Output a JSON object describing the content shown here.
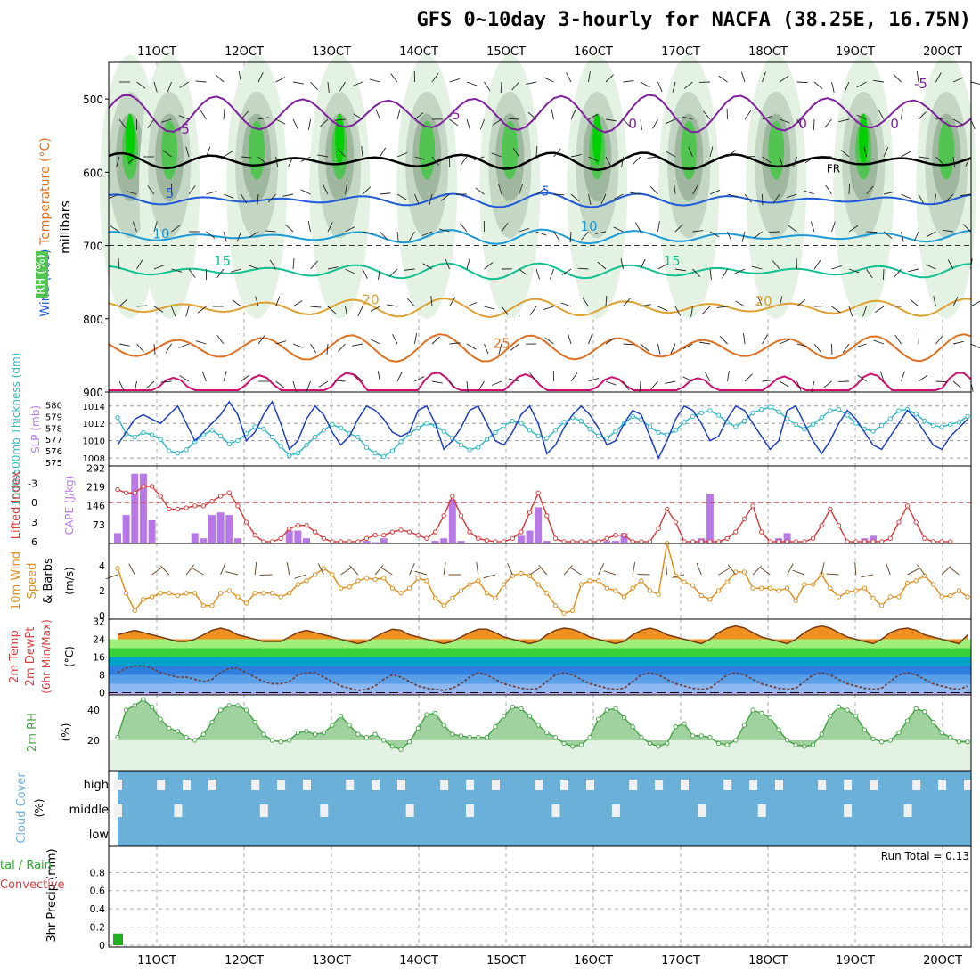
{
  "title": "GFS 0~10day 3-hourly for NACFA (38.25E, 16.75N)",
  "x_date_labels": [
    "11OCT",
    "12OCT",
    "13OCT",
    "14OCT",
    "15OCT",
    "16OCT",
    "17OCT",
    "18OCT",
    "19OCT",
    "20OCT"
  ],
  "run_total_label": "Run Total = 0.13",
  "colors": {
    "rh_fill_light": "#e4f2e4",
    "rh_fill_mid": "#c4d6c4",
    "rh_fill_dark": "#9fb79f",
    "rh_green": "#52c452",
    "rh_bright": "#00d000",
    "temp_m5": "#8020a0",
    "temp_5": "#1f5ad8",
    "temp_10": "#1a9ad8",
    "temp_15": "#10c090",
    "temp_20": "#e0a030",
    "temp_25": "#e07020",
    "temp_30": "#d01070",
    "freezing": "#000000",
    "slp": "#1e3fc8",
    "thickness": "#30b8c8",
    "cape": "#b878e8",
    "lifted": "#d84040",
    "wind10m": "#e09020",
    "rh2m": "#4aa64a",
    "cloud": "#6ab0d8",
    "cloud_gap": "#f0f0f0",
    "precip": "#20b020"
  },
  "chart_data": [
    {
      "type": "line",
      "panel": "upper-air",
      "y_axis_title": [
        "RH (%)",
        "Temperature (°C)",
        "Wind (m/s)"
      ],
      "ylabel": "millibars",
      "y_ticks": [
        500,
        600,
        700,
        800,
        900
      ],
      "ylim": [
        450,
        900
      ],
      "isotherm_labels": [
        {
          "t": 0.3,
          "p": 547,
          "text": "-5"
        },
        {
          "t": 3.4,
          "p": 528,
          "text": "-5"
        },
        {
          "t": 8.75,
          "p": 485,
          "text": "-5"
        },
        {
          "t": 8.45,
          "p": 540,
          "text": "0"
        },
        {
          "t": 7.4,
          "p": 540,
          "text": "0"
        },
        {
          "t": 5.45,
          "p": 540,
          "text": "0"
        },
        {
          "t": 0.15,
          "p": 635,
          "text": "5"
        },
        {
          "t": 4.45,
          "p": 632,
          "text": "5"
        },
        {
          "t": 0.05,
          "p": 690,
          "text": "10"
        },
        {
          "t": 4.95,
          "p": 680,
          "text": "10"
        },
        {
          "t": 0.75,
          "p": 727,
          "text": "15"
        },
        {
          "t": 5.9,
          "p": 727,
          "text": "15"
        },
        {
          "t": 2.45,
          "p": 780,
          "text": "20"
        },
        {
          "t": 6.95,
          "p": 782,
          "text": "20"
        },
        {
          "t": 3.95,
          "p": 840,
          "text": "25"
        },
        {
          "t": 7.75,
          "p": 600,
          "text": "FR"
        }
      ]
    },
    {
      "type": "line",
      "panel": "slp-thickness",
      "left_axis_title": "1000-500mb Thickness (dm)",
      "right_axis_title": "SLP (mb)",
      "thickness_ticks": [
        575,
        576,
        577,
        578,
        579,
        580
      ],
      "slp_ticks": [
        1008,
        1010,
        1012,
        1014
      ],
      "series": [
        {
          "name": "SLP (mb)",
          "axis": "right",
          "values": [
            1009.5,
            1011,
            1012.5,
            1013,
            1012.5,
            1012,
            1013,
            1014,
            1012,
            1010,
            1011,
            1012,
            1013,
            1014.5,
            1013,
            1010,
            1011,
            1013,
            1014.5,
            1012,
            1009,
            1010,
            1012.5,
            1014,
            1013,
            1011,
            1009.5,
            1010.5,
            1012.5,
            1014,
            1013.5,
            1012.5,
            1011,
            1010.5,
            1011,
            1013.5,
            1014,
            1012,
            1009,
            1010,
            1011.5,
            1013.5,
            1014,
            1012,
            1010,
            1009.5,
            1011,
            1013,
            1014,
            1012,
            1008.5,
            1009.5,
            1011.5,
            1013,
            1014,
            1013,
            1011.5,
            1009.5,
            1010,
            1012,
            1013.5,
            1013,
            1010.5,
            1008,
            1010,
            1012.5,
            1014,
            1013.5,
            1012,
            1010,
            1010.5,
            1012.5,
            1014,
            1013.5,
            1012,
            1010.5,
            1009,
            1010,
            1013.5,
            1014,
            1012,
            1010,
            1008.5,
            1010,
            1012,
            1013.5,
            1012.5,
            1011,
            1009.5,
            1009,
            1010.5,
            1012,
            1013.5,
            1012.5,
            1011,
            1009.5,
            1009,
            1010.5,
            1011.5,
            1012.5
          ]
        },
        {
          "name": "1000-500mb Thickness (dm)",
          "axis": "left",
          "values": [
            578.9,
            577.5,
            577.2,
            577.6,
            577.4,
            577,
            576,
            575.8,
            576.1,
            576.8,
            577.4,
            577.8,
            577.3,
            576.6,
            576.9,
            577.5,
            578.1,
            577.9,
            577.2,
            576.4,
            575.6,
            575.8,
            576.5,
            577.2,
            577.8,
            578.3,
            578,
            577.5,
            577.2,
            576.3,
            575.8,
            575.5,
            576,
            576.8,
            577.5,
            578,
            578.4,
            578.2,
            577.7,
            577.1,
            576.5,
            576.1,
            576.3,
            577,
            577.6,
            578.2,
            578.6,
            578.4,
            577.8,
            577.3,
            577.1,
            577.8,
            578.5,
            578.9,
            578.6,
            577.9,
            577.3,
            577.1,
            577.7,
            578.4,
            579,
            578.7,
            578.1,
            577.6,
            577.4,
            577.8,
            578.5,
            579,
            579.3,
            579.5,
            579.1,
            578.5,
            578.1,
            578.6,
            579.3,
            579.6,
            579.8,
            579.4,
            578.8,
            578.3,
            577.9,
            578.3,
            578.9,
            579.5,
            579.6,
            579.1,
            578.4,
            577.9,
            577.7,
            578.2,
            578.8,
            579.5,
            579.6,
            579.2,
            578.6,
            578.2,
            578.1,
            578.3,
            578.5,
            579
          ]
        }
      ]
    },
    {
      "type": "bar",
      "panel": "cape-lifted-index",
      "left_axis_title": "Lifted Index",
      "right_axis_title": "CAPE (J/kg)",
      "lifted_ticks": [
        -3,
        0,
        3,
        6
      ],
      "cape_ticks": [
        73,
        146,
        219,
        292
      ],
      "series": [
        {
          "name": "CAPE (J/kg)",
          "axis": "right",
          "values": [
            40,
            110,
            270,
            270,
            90,
            0,
            0,
            0,
            0,
            40,
            20,
            110,
            120,
            110,
            20,
            0,
            0,
            0,
            0,
            0,
            50,
            50,
            20,
            0,
            0,
            0,
            0,
            0,
            0,
            10,
            5,
            20,
            0,
            0,
            0,
            0,
            0,
            10,
            20,
            170,
            10,
            0,
            0,
            0,
            0,
            0,
            0,
            30,
            50,
            140,
            10,
            0,
            0,
            0,
            0,
            0,
            0,
            10,
            10,
            40,
            0,
            0,
            0,
            0,
            0,
            0,
            0,
            10,
            20,
            190,
            10,
            0,
            0,
            0,
            0,
            0,
            0,
            20,
            40,
            0,
            0,
            0,
            0,
            0,
            0,
            0,
            0,
            20,
            30,
            0,
            0,
            0,
            0,
            0,
            0,
            0,
            0,
            0
          ]
        },
        {
          "name": "Lifted Index",
          "axis": "left",
          "values": [
            -2,
            -1.5,
            -1.5,
            -2.5,
            -2.5,
            -1,
            1,
            1,
            0.8,
            0.5,
            0.5,
            -0.2,
            -1,
            -1.5,
            0.5,
            3,
            5,
            6,
            6,
            5.5,
            4,
            3.5,
            3.5,
            4.5,
            5.5,
            6,
            6,
            6,
            6,
            5.5,
            5,
            5,
            4.5,
            4.2,
            4.5,
            5,
            5.5,
            4.5,
            2,
            -1,
            2,
            4.5,
            5.5,
            5.8,
            6,
            6,
            5.5,
            4.5,
            1.5,
            -1.5,
            2,
            5.5,
            6,
            6,
            6,
            6,
            6,
            5.5,
            5,
            5,
            6,
            6,
            6,
            4,
            1,
            3,
            6,
            6,
            6,
            6,
            6,
            5.5,
            4.5,
            2.5,
            0.5,
            4.5,
            6,
            6,
            6,
            6,
            6,
            5.5,
            3.5,
            1,
            3.5,
            6,
            6,
            6,
            6,
            6,
            5.5,
            3,
            0.5,
            3,
            5.5,
            6,
            6,
            6
          ]
        }
      ],
      "reference_line": 0
    },
    {
      "type": "line",
      "panel": "wind-10m",
      "y_axis_title": [
        "10m Wind",
        "Speed",
        "& Barbs"
      ],
      "ylabel": "(m/s)",
      "y_ticks": [
        0,
        2,
        4
      ],
      "ylim": [
        0,
        5.5
      ],
      "series": [
        {
          "name": "10m Wind Speed",
          "values": [
            3.8,
            1.8,
            0.4,
            1.3,
            1.5,
            1.8,
            1.8,
            1.6,
            1.8,
            1.8,
            0.8,
            0.8,
            1.8,
            2,
            1.5,
            1,
            1.8,
            1.8,
            1.8,
            1.5,
            1.8,
            2.5,
            2.8,
            3.3,
            3.8,
            3.3,
            2.2,
            2.3,
            2.8,
            3,
            2.9,
            3,
            2.2,
            1.8,
            2.2,
            3,
            2.8,
            1.4,
            0.8,
            1.4,
            2,
            2.5,
            2.8,
            1.8,
            1.4,
            2.5,
            3.2,
            3.4,
            3.2,
            2.5,
            1.8,
            0.8,
            0.2,
            0.4,
            2.5,
            2.8,
            2.8,
            2.2,
            2,
            1.5,
            2.2,
            2.8,
            2,
            1.7,
            5.8,
            3.2,
            2.7,
            2.4,
            1.6,
            1.3,
            2,
            2.7,
            3.5,
            3.5,
            2.2,
            2.2,
            2.2,
            2,
            2.2,
            1.2,
            2.5,
            2.5,
            3.3,
            2.2,
            1.5,
            1.9,
            2,
            2.2,
            1.4,
            0.8,
            1.5,
            1.5,
            2.6,
            2.8,
            3.2,
            2.5,
            1.5,
            1.6,
            2,
            1.5
          ]
        }
      ]
    },
    {
      "type": "area",
      "panel": "temperature-2m",
      "y_axis_title": [
        "2m Temp",
        "2m DewPt",
        "(6hr Min/Max)"
      ],
      "ylabel": "(°C)",
      "y_ticks": [
        0,
        8,
        16,
        24,
        32
      ],
      "ylim": [
        -1,
        33
      ],
      "series": [
        {
          "name": "2m Temp",
          "values": [
            26,
            27,
            28,
            27,
            26,
            25,
            24,
            23,
            23,
            24,
            26,
            28,
            29,
            28,
            26,
            25,
            24,
            23,
            23,
            23,
            25,
            27,
            28,
            27,
            26,
            25,
            24,
            23,
            22,
            23,
            25,
            27,
            28.5,
            28,
            26,
            25,
            24,
            23,
            22,
            23,
            25,
            27,
            28.5,
            28.5,
            27,
            25,
            24,
            23,
            22,
            23,
            26,
            28,
            29,
            28.5,
            27,
            25,
            24,
            23,
            22,
            23,
            26,
            28,
            29,
            28,
            26,
            25,
            24,
            23,
            22,
            24,
            27,
            29,
            30,
            29,
            27,
            25,
            24,
            23,
            22,
            24,
            27,
            29,
            30,
            29,
            27,
            25,
            24,
            23,
            22,
            24,
            27,
            28.5,
            29,
            28,
            26,
            25,
            24,
            23,
            22,
            26
          ]
        },
        {
          "name": "2m DewPt",
          "values": [
            9,
            11,
            12,
            12,
            11,
            9,
            8,
            7,
            7,
            6,
            5,
            6,
            9,
            11,
            11,
            9,
            7,
            5,
            4,
            4,
            5,
            8,
            9,
            9,
            7,
            5,
            3,
            2,
            1,
            1.5,
            3,
            6,
            8,
            7,
            5,
            3,
            2,
            1.5,
            1,
            2,
            4,
            7,
            9,
            8,
            6,
            4,
            3,
            2,
            1.5,
            2,
            5,
            8,
            9,
            8,
            6,
            4,
            3,
            2,
            1.5,
            2,
            5,
            8,
            9,
            8,
            6,
            4,
            3,
            2,
            1.5,
            2,
            5,
            8,
            9,
            8,
            6,
            4,
            3,
            2,
            1.5,
            2,
            5,
            8,
            9,
            8,
            6,
            4,
            3,
            2,
            1.5,
            2,
            5,
            8,
            9,
            8,
            6,
            4,
            3,
            2,
            1.5,
            3
          ]
        }
      ]
    },
    {
      "type": "area",
      "panel": "rh-2m",
      "y_axis_title": "2m RH",
      "ylabel": "(%)",
      "y_ticks": [
        20,
        40
      ],
      "ylim": [
        0,
        50
      ],
      "series": [
        {
          "name": "2m RH",
          "values": [
            22,
            40,
            43,
            47,
            42,
            34,
            28,
            26,
            22,
            20,
            24,
            32,
            40,
            43,
            43,
            40,
            32,
            24,
            20,
            19,
            20,
            25,
            26,
            24,
            25,
            30,
            36,
            30,
            24,
            22,
            24,
            20,
            16,
            14,
            19,
            28,
            37,
            38,
            30,
            24,
            23,
            22,
            22,
            22,
            29,
            36,
            42,
            41,
            36,
            30,
            25,
            22,
            18,
            16,
            17,
            22,
            34,
            40,
            41,
            35,
            29,
            22,
            18,
            16,
            18,
            29,
            31,
            23,
            23,
            22,
            18,
            17,
            20,
            30,
            40,
            38,
            35,
            27,
            20,
            17,
            16,
            17,
            24,
            36,
            42,
            40,
            36,
            27,
            21,
            19,
            20,
            25,
            33,
            41,
            39,
            32,
            25,
            22,
            19,
            19
          ]
        }
      ]
    },
    {
      "type": "bar",
      "panel": "cloud-cover",
      "y_axis_title": [
        "Cloud Cover",
        "(%)"
      ],
      "row_labels": [
        "high",
        "middle",
        "low"
      ]
    },
    {
      "type": "bar",
      "panel": "precipitation",
      "y_axis_title": "3hr Precip (mm)",
      "legend_labels": [
        "tal / Rain",
        "Convective"
      ],
      "y_ticks": [
        "0",
        "0.2",
        "0.4",
        "0.6",
        "0.8"
      ],
      "ylim": [
        0,
        0.95
      ],
      "values": [
        0.13,
        0,
        0,
        0,
        0,
        0,
        0,
        0,
        0,
        0,
        0,
        0,
        0,
        0,
        0,
        0,
        0,
        0,
        0,
        0,
        0,
        0,
        0,
        0,
        0,
        0,
        0,
        0,
        0,
        0,
        0,
        0,
        0,
        0,
        0,
        0,
        0,
        0,
        0,
        0,
        0,
        0,
        0,
        0,
        0,
        0,
        0,
        0,
        0,
        0,
        0,
        0,
        0,
        0,
        0,
        0,
        0,
        0,
        0,
        0,
        0,
        0,
        0,
        0,
        0,
        0,
        0,
        0,
        0,
        0,
        0,
        0,
        0,
        0,
        0,
        0,
        0,
        0,
        0,
        0,
        0,
        0,
        0,
        0,
        0,
        0,
        0,
        0,
        0,
        0,
        0,
        0,
        0,
        0,
        0,
        0,
        0,
        0,
        0,
        0
      ]
    }
  ]
}
